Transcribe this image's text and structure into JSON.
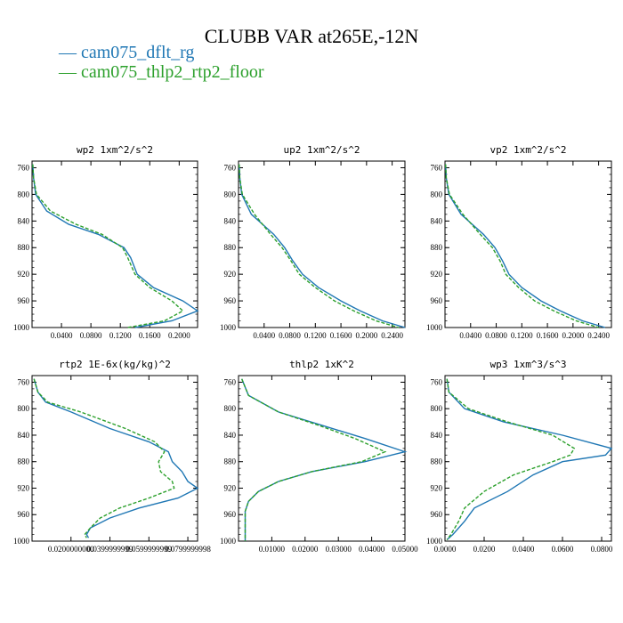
{
  "title": "CLUBB VAR at265E,-12N",
  "legend": [
    {
      "label": "cam075_dflt_rg",
      "color": "#1f77b4",
      "dash": "solid"
    },
    {
      "label": "cam075_thlp2_rtp2_floor",
      "color": "#2ca02c",
      "dash": "dashed"
    }
  ],
  "chart_data": [
    {
      "type": "line",
      "title": "wp2  1xm^2/s^2",
      "ylim": [
        1000,
        750
      ],
      "yticks": [
        "760",
        "800",
        "840",
        "880",
        "920",
        "960",
        "1000"
      ],
      "xlim": [
        0,
        0.225
      ],
      "xticks": [
        "0.0400",
        "0.0800",
        "0.1200",
        "0.1600",
        "0.2000"
      ],
      "y": [
        755,
        775,
        800,
        825,
        845,
        860,
        880,
        895,
        920,
        940,
        960,
        975,
        990,
        1000
      ],
      "series": [
        {
          "name": "cam075_dflt_rg",
          "values": [
            0.001,
            0.002,
            0.005,
            0.02,
            0.05,
            0.09,
            0.125,
            0.134,
            0.143,
            0.165,
            0.205,
            0.225,
            0.19,
            0.14
          ]
        },
        {
          "name": "cam075_thlp2_rtp2_floor",
          "values": [
            0.001,
            0.002,
            0.006,
            0.025,
            0.06,
            0.095,
            0.123,
            0.13,
            0.14,
            0.16,
            0.19,
            0.205,
            0.18,
            0.13
          ]
        }
      ]
    },
    {
      "type": "line",
      "title": "up2  1xm^2/s^2",
      "ylim": [
        1000,
        750
      ],
      "yticks": [
        "760",
        "800",
        "840",
        "880",
        "920",
        "960",
        "1000"
      ],
      "xlim": [
        0,
        0.26
      ],
      "xticks": [
        "0.0400",
        "0.0800",
        "0.1200",
        "0.1600",
        "0.2000",
        "0.2400"
      ],
      "y": [
        755,
        775,
        800,
        830,
        860,
        880,
        900,
        920,
        940,
        960,
        975,
        990,
        1000
      ],
      "series": [
        {
          "name": "cam075_dflt_rg",
          "values": [
            0.001,
            0.002,
            0.005,
            0.02,
            0.055,
            0.072,
            0.085,
            0.1,
            0.125,
            0.16,
            0.19,
            0.225,
            0.26
          ]
        },
        {
          "name": "cam075_thlp2_rtp2_floor",
          "values": [
            0.001,
            0.002,
            0.006,
            0.025,
            0.05,
            0.068,
            0.082,
            0.095,
            0.12,
            0.15,
            0.18,
            0.215,
            0.25
          ]
        }
      ]
    },
    {
      "type": "line",
      "title": "vp2  1xm^2/s^2",
      "ylim": [
        1000,
        750
      ],
      "yticks": [
        "760",
        "800",
        "840",
        "880",
        "920",
        "960",
        "1000"
      ],
      "xlim": [
        0,
        0.26
      ],
      "xticks": [
        "0.0400",
        "0.0800",
        "0.1200",
        "0.1600",
        "0.2000",
        "0.2400"
      ],
      "y": [
        755,
        775,
        800,
        830,
        860,
        880,
        900,
        920,
        940,
        960,
        975,
        990,
        1000
      ],
      "series": [
        {
          "name": "cam075_dflt_rg",
          "values": [
            0.001,
            0.002,
            0.006,
            0.025,
            0.06,
            0.078,
            0.09,
            0.1,
            0.12,
            0.15,
            0.18,
            0.215,
            0.25
          ]
        },
        {
          "name": "cam075_thlp2_rtp2_floor",
          "values": [
            0.001,
            0.002,
            0.007,
            0.028,
            0.055,
            0.074,
            0.086,
            0.095,
            0.115,
            0.14,
            0.17,
            0.205,
            0.24
          ]
        }
      ]
    },
    {
      "type": "line",
      "title": "rtp2  1E-6x(kg/kg)^2",
      "ylim": [
        1000,
        750
      ],
      "yticks": [
        "760",
        "800",
        "840",
        "880",
        "920",
        "960",
        "1000"
      ],
      "xlim": [
        0,
        0.085
      ],
      "xticks": [
        "0.0200000000",
        "0.0399999999",
        "0.0599999999",
        "0.0799999998"
      ],
      "y": [
        755,
        775,
        790,
        805,
        830,
        850,
        865,
        880,
        895,
        910,
        920,
        935,
        950,
        965,
        980,
        990,
        995
      ],
      "series": [
        {
          "name": "cam075_dflt_rg",
          "values": [
            0.001,
            0.003,
            0.007,
            0.02,
            0.04,
            0.06,
            0.07,
            0.072,
            0.077,
            0.08,
            0.085,
            0.075,
            0.055,
            0.04,
            0.03,
            0.028,
            0.029
          ]
        },
        {
          "name": "cam075_thlp2_rtp2_floor",
          "values": [
            0.001,
            0.003,
            0.008,
            0.025,
            0.048,
            0.063,
            0.068,
            0.065,
            0.066,
            0.072,
            0.073,
            0.06,
            0.045,
            0.035,
            0.03,
            0.027,
            0.028
          ]
        }
      ]
    },
    {
      "type": "line",
      "title": "thlp2  1xK^2",
      "ylim": [
        1000,
        750
      ],
      "yticks": [
        "760",
        "800",
        "840",
        "880",
        "920",
        "960",
        "1000"
      ],
      "xlim": [
        0,
        0.05
      ],
      "xticks": [
        "0.01000",
        "0.02000",
        "0.03000",
        "0.04000",
        "0.05000"
      ],
      "y": [
        755,
        780,
        805,
        825,
        845,
        865,
        880,
        895,
        910,
        925,
        940,
        955,
        970,
        990,
        1000
      ],
      "series": [
        {
          "name": "cam075_dflt_rg",
          "values": [
            0.001,
            0.003,
            0.012,
            0.025,
            0.038,
            0.05,
            0.038,
            0.022,
            0.012,
            0.006,
            0.003,
            0.002,
            0.002,
            0.002,
            0.002
          ]
        },
        {
          "name": "cam075_thlp2_rtp2_floor",
          "values": [
            0.001,
            0.003,
            0.012,
            0.024,
            0.035,
            0.044,
            0.037,
            0.022,
            0.012,
            0.006,
            0.003,
            0.002,
            0.002,
            0.002,
            0.002
          ]
        }
      ]
    },
    {
      "type": "line",
      "title": "wp3  1xm^3/s^3",
      "ylim": [
        1000,
        750
      ],
      "yticks": [
        "760",
        "800",
        "840",
        "880",
        "920",
        "960",
        "1000"
      ],
      "xlim": [
        0,
        0.085
      ],
      "xticks": [
        "0.0000",
        "0.0200",
        "0.0400",
        "0.0600",
        "0.0800"
      ],
      "y": [
        755,
        775,
        800,
        820,
        840,
        860,
        870,
        880,
        900,
        925,
        950,
        970,
        990,
        998
      ],
      "series": [
        {
          "name": "cam075_dflt_rg",
          "values": [
            0.001,
            0.002,
            0.01,
            0.03,
            0.06,
            0.085,
            0.082,
            0.06,
            0.045,
            0.032,
            0.015,
            0.01,
            0.004,
            0.001
          ]
        },
        {
          "name": "cam075_thlp2_rtp2_floor",
          "values": [
            0.001,
            0.002,
            0.012,
            0.032,
            0.055,
            0.066,
            0.064,
            0.055,
            0.035,
            0.02,
            0.01,
            0.007,
            0.003,
            0.001
          ]
        }
      ]
    }
  ]
}
